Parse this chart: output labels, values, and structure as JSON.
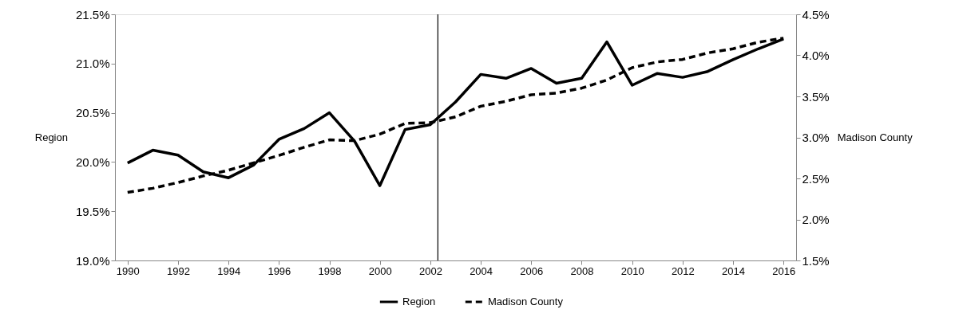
{
  "chart_data": {
    "type": "line",
    "ylabel": "Region",
    "y2label": "Madison County",
    "x": [
      1990,
      1991,
      1992,
      1993,
      1994,
      1995,
      1996,
      1997,
      1998,
      1999,
      2000,
      2001,
      2002,
      2003,
      2004,
      2005,
      2006,
      2007,
      2008,
      2009,
      2010,
      2011,
      2012,
      2013,
      2014,
      2015,
      2016
    ],
    "series": [
      {
        "name": "Region",
        "color": "#000000",
        "line_style": "solid",
        "values": [
          19.99,
          20.12,
          20.07,
          19.9,
          19.84,
          19.97,
          20.23,
          20.34,
          20.5,
          20.21,
          19.76,
          20.33,
          20.38,
          20.61,
          20.89,
          20.85,
          20.95,
          20.8,
          20.85,
          21.22,
          20.78,
          20.9,
          20.86,
          20.92,
          21.04,
          21.15,
          21.25
        ]
      },
      {
        "name": "Madison County",
        "color": "#000000",
        "line_style": "dashed",
        "axis": "y2",
        "values": [
          2.33,
          2.38,
          2.45,
          2.53,
          2.6,
          2.69,
          2.78,
          2.88,
          2.97,
          2.96,
          3.04,
          3.17,
          3.18,
          3.25,
          3.38,
          3.44,
          3.52,
          3.54,
          3.6,
          3.7,
          3.85,
          3.92,
          3.95,
          4.03,
          4.08,
          4.16,
          4.21
        ]
      }
    ],
    "xlim": [
      1989.5,
      2016.5
    ],
    "xticks": [
      1990,
      1992,
      1994,
      1996,
      1998,
      2000,
      2002,
      2004,
      2006,
      2008,
      2010,
      2012,
      2014,
      2016
    ],
    "ylim": [
      19.0,
      21.5
    ],
    "yticks": [
      {
        "value": 19.0,
        "label": "19.0%"
      },
      {
        "value": 19.5,
        "label": "19.5%"
      },
      {
        "value": 20.0,
        "label": "20.0%"
      },
      {
        "value": 20.5,
        "label": "20.5%"
      },
      {
        "value": 21.0,
        "label": "21.0%"
      },
      {
        "value": 21.5,
        "label": "21.5%"
      }
    ],
    "y2lim": [
      1.5,
      4.5
    ],
    "y2ticks": [
      {
        "value": 1.5,
        "label": "1.5%"
      },
      {
        "value": 2.0,
        "label": "2.0%"
      },
      {
        "value": 2.5,
        "label": "2.5%"
      },
      {
        "value": 3.0,
        "label": "3.0%"
      },
      {
        "value": 3.5,
        "label": "3.5%"
      },
      {
        "value": 4.0,
        "label": "4.0%"
      },
      {
        "value": 4.5,
        "label": "4.5%"
      }
    ],
    "ref_lines": [
      {
        "axis": "x",
        "value": 2002.3,
        "color": "#000000"
      }
    ],
    "grid": false,
    "legend": "bottom"
  }
}
